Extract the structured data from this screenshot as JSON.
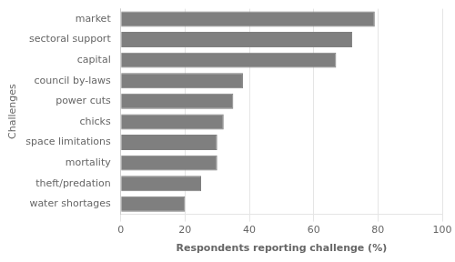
{
  "chart_data": {
    "type": "bar",
    "orientation": "horizontal",
    "categories": [
      "water shortages",
      "theft/predation",
      "mortality",
      "space limitations",
      "chicks",
      "power cuts",
      "council by-laws",
      "capital",
      "sectoral support",
      "market"
    ],
    "values": [
      20,
      25,
      30,
      30,
      32,
      35,
      38,
      67,
      72,
      79
    ],
    "color": "#7f7f7f",
    "xlabel": "Respondents reporting challenge (%)",
    "ylabel": "Challenges",
    "xlim": [
      0,
      100
    ],
    "xticks": [
      0,
      20,
      40,
      60,
      80,
      100
    ],
    "grid": true
  }
}
